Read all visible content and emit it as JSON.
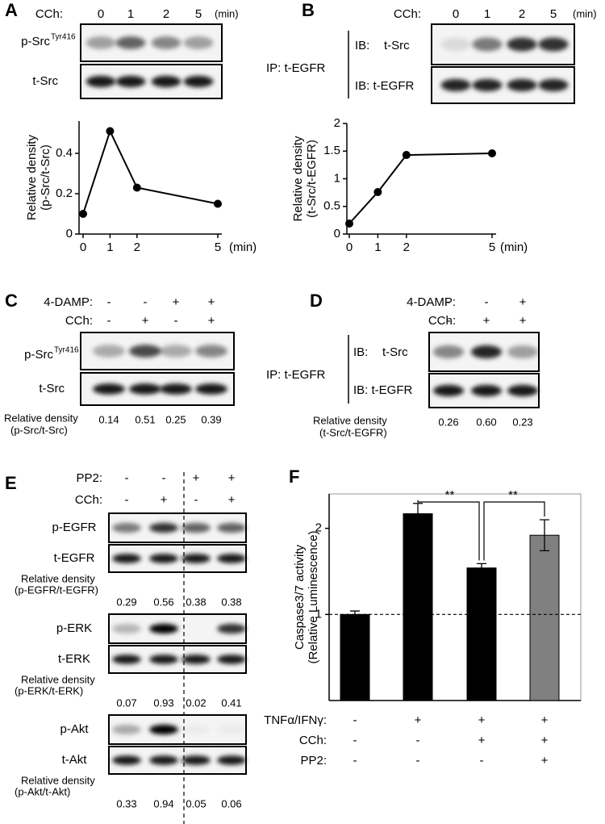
{
  "panel_a": {
    "label": "A",
    "treatment": "CCh:",
    "lanes": [
      "0",
      "1",
      "2",
      "5"
    ],
    "unit": "(min)",
    "blots": [
      {
        "name": "p-Src",
        "superscript": "Tyr416"
      },
      {
        "name": "t-Src"
      }
    ],
    "chart": {
      "type": "line",
      "y_label": [
        "Relative density",
        "(p-Src/t-Src)"
      ],
      "x": [
        0,
        1,
        2,
        5
      ],
      "values": [
        0.1,
        0.51,
        0.23,
        0.15
      ],
      "xlim": [
        0,
        5
      ],
      "xticks": [
        0,
        1,
        2,
        5
      ],
      "x_unit": "(min)",
      "ylim": [
        0,
        0.56
      ],
      "yticks": [
        0,
        0.2,
        0.4
      ],
      "color": "#000000"
    }
  },
  "panel_b": {
    "label": "B",
    "treatment": "CCh:",
    "lanes": [
      "0",
      "1",
      "2",
      "5"
    ],
    "unit": "(min)",
    "ip": "IP: t-EGFR",
    "blots": [
      {
        "prefix": "IB:",
        "name": "t-Src"
      },
      {
        "name": "IB: t-EGFR"
      }
    ],
    "chart": {
      "type": "line",
      "y_label": [
        "Relative density",
        "(t-Src/t-EGFR)"
      ],
      "x": [
        0,
        1,
        2,
        5
      ],
      "values": [
        0.19,
        0.76,
        1.43,
        1.46
      ],
      "xlim": [
        0,
        5
      ],
      "xticks": [
        0,
        1,
        2,
        5
      ],
      "x_unit": "(min)",
      "ylim": [
        0,
        2
      ],
      "yticks": [
        0,
        0.5,
        1,
        1.5,
        2
      ],
      "color": "#000000"
    }
  },
  "panel_c": {
    "label": "C",
    "rows": [
      {
        "name": "4-DAMP:",
        "signs": [
          "-",
          "-",
          "+",
          "+"
        ]
      },
      {
        "name": "CCh:",
        "signs": [
          "-",
          "+",
          "-",
          "+"
        ]
      }
    ],
    "blots": [
      {
        "name": "p-Src",
        "superscript": "Tyr416"
      },
      {
        "name": "t-Src"
      }
    ],
    "density_label": [
      "Relative density",
      "(p-Src/t-Src)"
    ],
    "densities": [
      "0.14",
      "0.51",
      "0.25",
      "0.39"
    ]
  },
  "panel_d": {
    "label": "D",
    "rows": [
      {
        "name": "4-DAMP:",
        "signs": [
          "-",
          "-",
          "+"
        ]
      },
      {
        "name": "CCh:",
        "signs": [
          "-",
          "+",
          "+"
        ]
      }
    ],
    "ip": "IP: t-EGFR",
    "blots": [
      {
        "prefix": "IB:",
        "name": "t-Src"
      },
      {
        "name": "IB: t-EGFR"
      }
    ],
    "density_label": [
      "Relative density",
      "(t-Src/t-EGFR)"
    ],
    "densities": [
      "0.26",
      "0.60",
      "0.23"
    ]
  },
  "panel_e": {
    "label": "E",
    "rows": [
      {
        "name": "PP2:",
        "signs": [
          "-",
          "-",
          "+",
          "+"
        ]
      },
      {
        "name": "CCh:",
        "signs": [
          "-",
          "+",
          "-",
          "+"
        ]
      }
    ],
    "groups": [
      {
        "blots": [
          "p-EGFR",
          "t-EGFR"
        ],
        "density_label": [
          "Relative density",
          "(p-EGFR/t-EGFR)"
        ],
        "densities": [
          "0.29",
          "0.56",
          "0.38",
          "0.38"
        ]
      },
      {
        "blots": [
          "p-ERK",
          "t-ERK"
        ],
        "density_label": [
          "Relative density",
          "(p-ERK/t-ERK)"
        ],
        "densities": [
          "0.07",
          "0.93",
          "0.02",
          "0.41"
        ]
      },
      {
        "blots": [
          "p-Akt",
          "t-Akt"
        ],
        "density_label": [
          "Relative density",
          "(p-Akt/t-Akt)"
        ],
        "densities": [
          "0.33",
          "0.94",
          "0.05",
          "0.06"
        ]
      }
    ]
  },
  "panel_f": {
    "label": "F",
    "chart": {
      "type": "bar",
      "y_label": [
        "Caspase3/7 activity",
        "(Relative Luminescence)"
      ],
      "values": [
        1,
        2.17,
        1.54,
        1.92
      ],
      "errors": [
        0.04,
        0.12,
        0.05,
        0.18
      ],
      "colors": [
        "#000000",
        "#000000",
        "#000000",
        "#808080"
      ],
      "ylim": [
        0,
        2.4
      ],
      "yticks": [
        1,
        2
      ],
      "reference_line": 1,
      "annotations": [
        "**",
        "**"
      ]
    },
    "rows": [
      {
        "name": "TNFα/IFNγ:",
        "signs": [
          "-",
          "+",
          "+",
          "+"
        ]
      },
      {
        "name": "CCh:",
        "signs": [
          "-",
          "-",
          "+",
          "+"
        ]
      },
      {
        "name": "PP2:",
        "signs": [
          "-",
          "-",
          "-",
          "+"
        ]
      }
    ]
  }
}
